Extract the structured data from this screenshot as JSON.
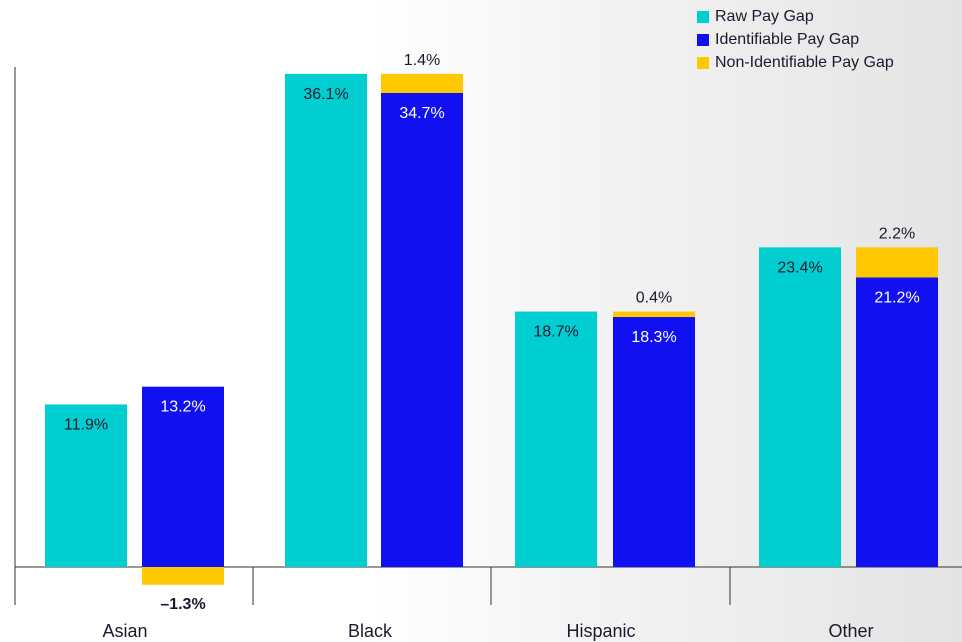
{
  "chart_data": {
    "type": "bar",
    "stacked_second_bar": true,
    "categories": [
      "Asian",
      "Black",
      "Hispanic",
      "Other"
    ],
    "series": [
      {
        "name": "Raw Pay Gap",
        "values": [
          11.9,
          36.1,
          18.7,
          23.4
        ],
        "labels": [
          "11.9%",
          "36.1%",
          "18.7%",
          "23.4%"
        ]
      },
      {
        "name": "Identifiable Pay Gap",
        "values": [
          13.2,
          34.7,
          18.3,
          21.2
        ],
        "labels": [
          "13.2%",
          "34.7%",
          "18.3%",
          "21.2%"
        ]
      },
      {
        "name": "Non-Identifiable Pay Gap",
        "values": [
          -1.3,
          1.4,
          0.4,
          2.2
        ],
        "labels": [
          "–1.3%",
          "1.4%",
          "0.4%",
          "2.2%"
        ]
      }
    ],
    "colors": {
      "raw": "#00CED1",
      "identifiable": "#1010F0",
      "non_identifiable": "#FFC800",
      "axis": "#333333",
      "label_dark": "#1a1a2e",
      "label_light": "#ffffff"
    },
    "ylim": [
      -3,
      40
    ],
    "grid": false,
    "legend_position": "top-right",
    "title": "",
    "xlabel": "",
    "ylabel": ""
  }
}
